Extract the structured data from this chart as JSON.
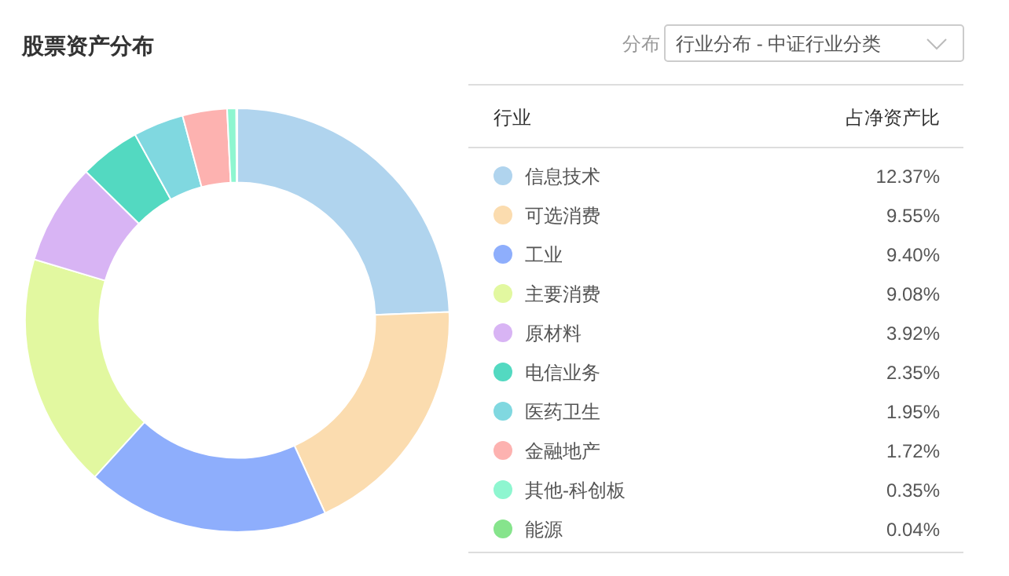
{
  "chart_data": {
    "type": "donut",
    "title": "股票资产分布",
    "categories": [
      "信息技术",
      "可选消费",
      "工业",
      "主要消费",
      "原材料",
      "电信业务",
      "医药卫生",
      "金融地产",
      "其他-科创板",
      "能源"
    ],
    "values": [
      12.37,
      9.55,
      9.4,
      9.08,
      3.92,
      2.35,
      1.95,
      1.72,
      0.35,
      0.04
    ],
    "value_labels": [
      "12.37%",
      "9.55%",
      "9.40%",
      "9.08%",
      "3.92%",
      "2.35%",
      "1.95%",
      "1.72%",
      "0.35%",
      "0.04%"
    ],
    "colors": [
      "#b0d4ee",
      "#fbdcaf",
      "#8eaefc",
      "#e2f8a0",
      "#d8b4f4",
      "#53d9c1",
      "#80d8e0",
      "#fdb2b0",
      "#8ef6d0",
      "#86e48c"
    ],
    "legend": "right",
    "annotations": [
      "分布",
      "行业分布 - 中证行业分类",
      "行业",
      "占净资产比"
    ]
  }
}
